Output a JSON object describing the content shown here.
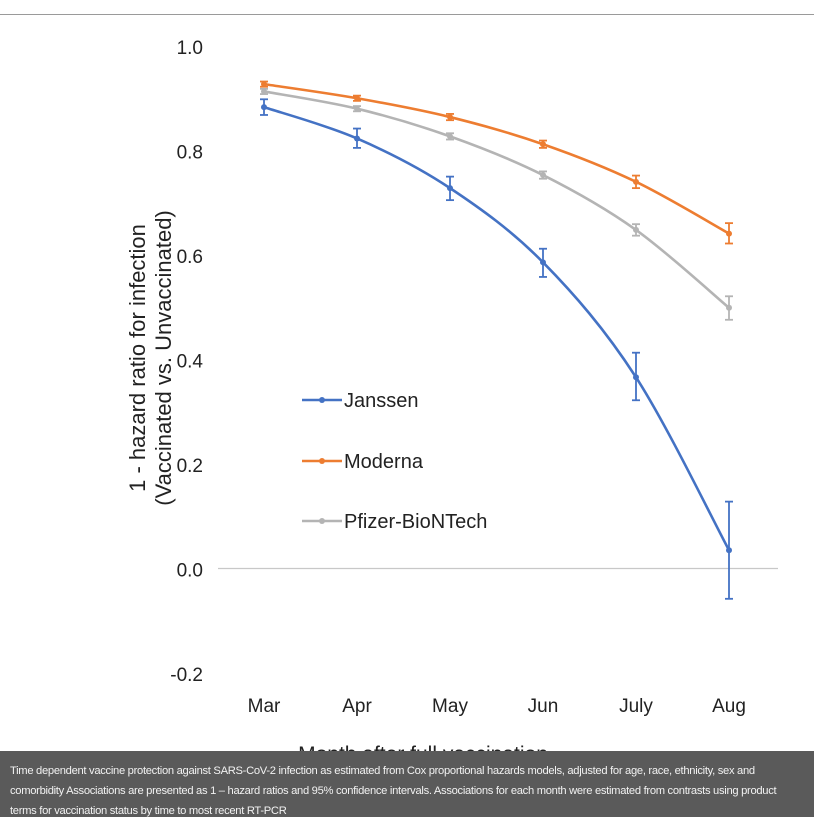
{
  "caption": "Time dependent vaccine protection against SARS-CoV-2 infection as estimated from Cox proportional hazards models, adjusted for age, race, ethnicity, sex and comorbidity Associations are presented as 1 – hazard ratios and 95% confidence intervals. Associations for each month were estimated from contrasts using product terms for vaccination status by time to most recent RT-PCR",
  "chart_data": {
    "type": "line",
    "title": "",
    "xlabel": "Month after full vaccination",
    "ylabel": [
      "1 - hazard ratio for infection",
      "(Vaccinated vs. Unvaccinated)"
    ],
    "ylim": [
      -0.2,
      1.0
    ],
    "yticks": [
      -0.2,
      0.0,
      0.2,
      0.4,
      0.6,
      0.8,
      1.0
    ],
    "ytick_labels": [
      "-0.2",
      "0.0",
      "0.2",
      "0.4",
      "0.6",
      "0.8",
      "1.0"
    ],
    "grid": "horizontal line at 0.0 only",
    "legend_position": "center-left",
    "categories": [
      "Mar",
      "Apr",
      "May",
      "Jun",
      "July",
      "Aug"
    ],
    "series": [
      {
        "name": "Janssen",
        "color": "#4472c4",
        "values": [
          0.883,
          0.823,
          0.728,
          0.586,
          0.366,
          0.035
        ],
        "ci_low": [
          0.868,
          0.805,
          0.705,
          0.558,
          0.322,
          -0.058
        ],
        "ci_high": [
          0.898,
          0.842,
          0.75,
          0.612,
          0.413,
          0.128
        ]
      },
      {
        "name": "Moderna",
        "color": "#ed7d31",
        "values": [
          0.927,
          0.9,
          0.864,
          0.812,
          0.74,
          0.641
        ],
        "ci_low": [
          0.922,
          0.895,
          0.858,
          0.805,
          0.728,
          0.622
        ],
        "ci_high": [
          0.932,
          0.905,
          0.87,
          0.819,
          0.752,
          0.661
        ]
      },
      {
        "name": "Pfizer-BioNTech",
        "color": "#b4b4b4",
        "values": [
          0.913,
          0.88,
          0.827,
          0.753,
          0.648,
          0.499
        ],
        "ci_low": [
          0.908,
          0.875,
          0.821,
          0.746,
          0.637,
          0.476
        ],
        "ci_high": [
          0.918,
          0.885,
          0.833,
          0.76,
          0.659,
          0.521
        ]
      }
    ]
  }
}
